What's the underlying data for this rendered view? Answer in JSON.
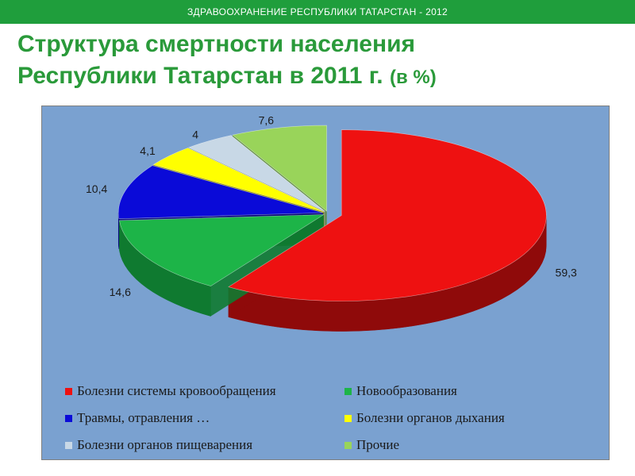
{
  "header": {
    "banner": "ЗДРАВООХРАНЕНИЕ РЕСПУБЛИКИ ТАТАРСТАН - 2012",
    "title_line1": "Структура смертности населения",
    "title_line2": "Республики Татарстан в 2011 г.",
    "title_unit": "(в %)"
  },
  "colors": {
    "banner_bg": "#1f9e3c",
    "title": "#2a9a3a",
    "plot_bg": "#7aa1d0"
  },
  "chart_data": {
    "type": "pie",
    "title": "Структура смертности населения Республики Татарстан в 2011 г. (в %)",
    "legend_position": "bottom",
    "slices": [
      {
        "label": "Болезни системы кровообращения",
        "value": 59.3,
        "value_label": "59,3",
        "color": "#ee1111",
        "shade": "#8f0a0a"
      },
      {
        "label": "Новообразования",
        "value": 14.6,
        "value_label": "14,6",
        "color": "#1db448",
        "shade": "#0f7a30"
      },
      {
        "label": "Травмы, отравления …",
        "value": 10.4,
        "value_label": "10,4",
        "color": "#0a0ad8",
        "shade": "#05057a"
      },
      {
        "label": "Болезни органов дыхания",
        "value": 4.1,
        "value_label": "4,1",
        "color": "#ffff00",
        "shade": "#9c9c00"
      },
      {
        "label": "Болезни органов пищеварения",
        "value": 4.0,
        "value_label": "4",
        "color": "#c8d8e6",
        "shade": "#7d8f9e"
      },
      {
        "label": "Прочие",
        "value": 7.6,
        "value_label": "7,6",
        "color": "#99d45a",
        "shade": "#5d8a2f"
      }
    ]
  }
}
